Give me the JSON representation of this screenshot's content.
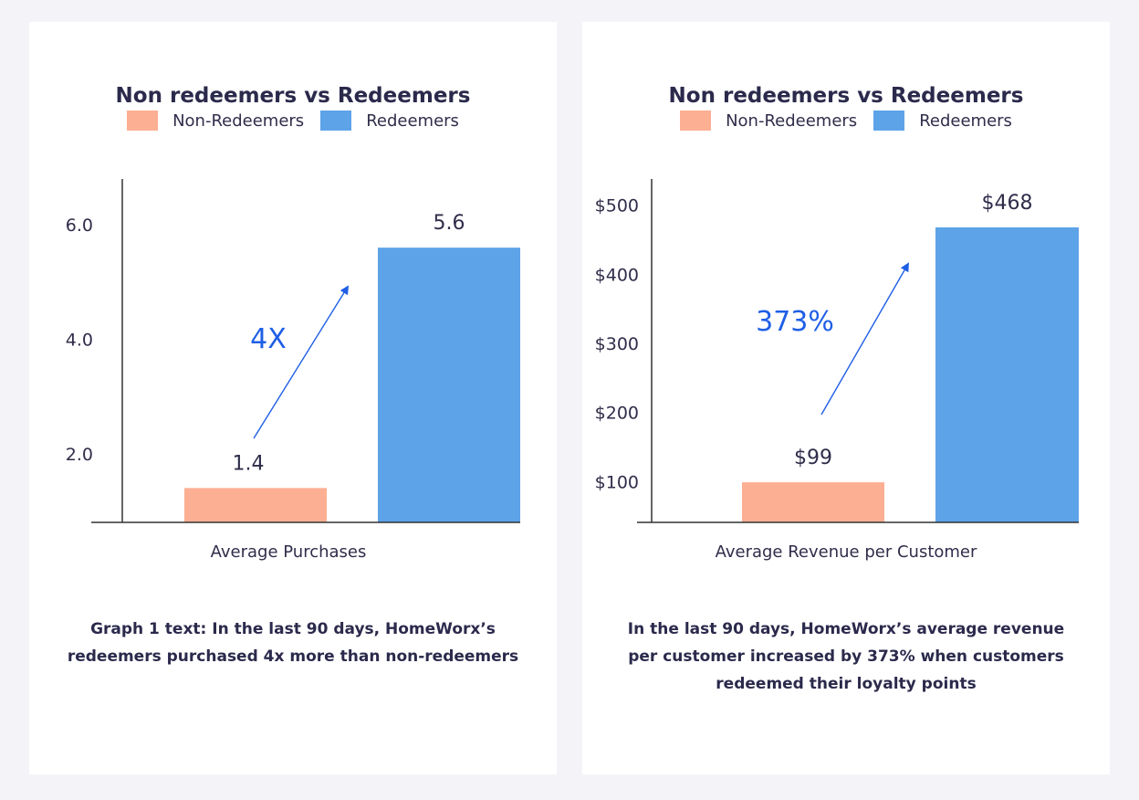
{
  "colors": {
    "non_redeemers": "#fcaf92",
    "redeemers": "#5da3e8",
    "annotation": "#1f5fe6"
  },
  "legend": {
    "non_redeemers": "Non-Redeemers",
    "redeemers": "Redeemers"
  },
  "chart_data": [
    {
      "type": "bar",
      "title": "Non redeemers vs Redeemers",
      "categories": [
        "Non-Redeemers",
        "Redeemers"
      ],
      "values": [
        1.4,
        5.6
      ],
      "value_labels": [
        "1.4",
        "5.6"
      ],
      "yticks": [
        2.0,
        4.0,
        6.0
      ],
      "ytick_labels": [
        "2.0",
        "4.0",
        "6.0"
      ],
      "ylim": [
        0.8,
        6.8
      ],
      "xlabel": "Average Purchases",
      "annotation": "4X",
      "caption": "Graph 1 text: In the last 90 days, HomeWorx’s redeemers purchased 4x more than non-redeemers"
    },
    {
      "type": "bar",
      "title": "Non redeemers vs Redeemers",
      "categories": [
        "Non-Redeemers",
        "Redeemers"
      ],
      "values": [
        99,
        468
      ],
      "value_labels": [
        "$99",
        "$468"
      ],
      "yticks": [
        100,
        200,
        300,
        400,
        500
      ],
      "ytick_labels": [
        "$100",
        "$200",
        "$300",
        "$400",
        "$500"
      ],
      "ylim": [
        41,
        538
      ],
      "xlabel": "Average Revenue per Customer",
      "annotation": "373%",
      "caption": "In the last 90 days, HomeWorx’s average revenue per customer increased by 373% when customers redeemed their loyalty points"
    }
  ]
}
